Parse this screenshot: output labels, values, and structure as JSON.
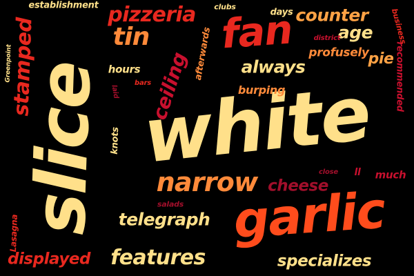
{
  "palette": {
    "cream": "#ffe08a",
    "red": "#e8281f",
    "orange": "#ff6e2c",
    "light_orange": "#ffa245",
    "crimson": "#c8102e",
    "maroon": "#a10f2b"
  },
  "words": [
    {
      "text": "white",
      "color": "#ffe08a"
    },
    {
      "text": "slice",
      "color": "#ffe08a"
    },
    {
      "text": "garlic",
      "color": "#ff4c1c"
    },
    {
      "text": "fan",
      "color": "#e8281f"
    },
    {
      "text": "pizzeria",
      "color": "#e8281f"
    },
    {
      "text": "narrow",
      "color": "#ff8a3a"
    },
    {
      "text": "stamped",
      "color": "#e8281f"
    },
    {
      "text": "features",
      "color": "#ffe08a"
    },
    {
      "text": "specializes",
      "color": "#ffe08a"
    },
    {
      "text": "telegraph",
      "color": "#ffe08a"
    },
    {
      "text": "displayed",
      "color": "#e8281f"
    },
    {
      "text": "tin",
      "color": "#ff8a3a"
    },
    {
      "text": "counter",
      "color": "#ffa245"
    },
    {
      "text": "always",
      "color": "#ffe08a"
    },
    {
      "text": "ceiling",
      "color": "#c8102e"
    },
    {
      "text": "age",
      "color": "#ffe08a"
    },
    {
      "text": "pie",
      "color": "#ffa245"
    },
    {
      "text": "cheese",
      "color": "#a10f2b"
    },
    {
      "text": "profusely",
      "color": "#ff8a3a"
    },
    {
      "text": "burping",
      "color": "#ff8a3a"
    },
    {
      "text": "hours",
      "color": "#ffe08a"
    },
    {
      "text": "recommended",
      "color": "#c8102e"
    },
    {
      "text": "afterwards",
      "color": "#ff8a3a"
    },
    {
      "text": "establishment",
      "color": "#ffe08a"
    },
    {
      "text": "clubs",
      "color": "#ffe08a"
    },
    {
      "text": "days",
      "color": "#ffe08a"
    },
    {
      "text": "business",
      "color": "#e8281f"
    },
    {
      "text": "district",
      "color": "#c8102e"
    },
    {
      "text": "knots",
      "color": "#ffe08a"
    },
    {
      "text": "much",
      "color": "#c8102e"
    },
    {
      "text": "ll",
      "color": "#c8102e"
    },
    {
      "text": "close",
      "color": "#a10f2b"
    },
    {
      "text": "salads",
      "color": "#a10f2b"
    },
    {
      "text": "Lasagna",
      "color": "#e8281f"
    },
    {
      "text": "Greenpoint",
      "color": "#ffe08a"
    },
    {
      "text": "laid",
      "color": "#a10f2b"
    },
    {
      "text": "bars",
      "color": "#e8281f"
    }
  ]
}
